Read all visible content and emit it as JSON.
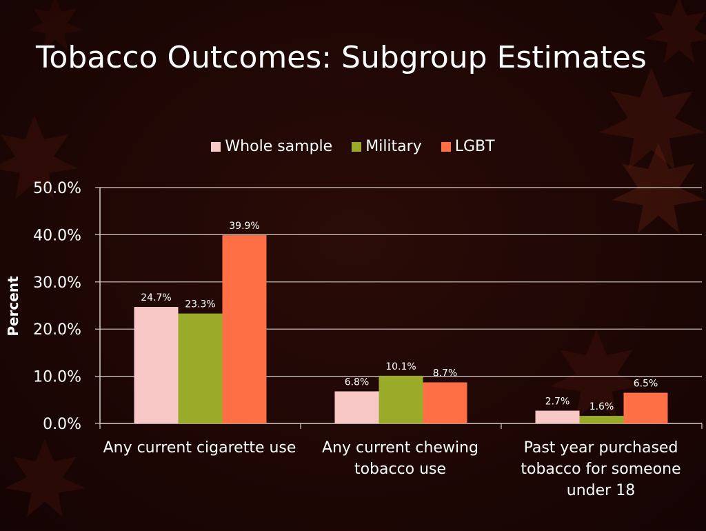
{
  "slide": {
    "title": "Tobacco Outcomes: Subgroup Estimates"
  },
  "chart_data": {
    "type": "bar",
    "ylabel": "Percent",
    "xlabel": "",
    "ylim": [
      0,
      50
    ],
    "yticks": [
      "0.0%",
      "10.0%",
      "20.0%",
      "30.0%",
      "40.0%",
      "50.0%"
    ],
    "grid": true,
    "legend_position": "top",
    "categories": [
      "Any current cigarette use",
      "Any current chewing tobacco use",
      "Past year purchased tobacco for someone under 18"
    ],
    "series": [
      {
        "name": "Whole sample",
        "color": "#f7c8c6",
        "values": [
          24.7,
          6.8,
          2.7
        ],
        "labels": [
          "24.7%",
          "6.8%",
          "2.7%"
        ]
      },
      {
        "name": "Military",
        "color": "#9aab2a",
        "values": [
          23.3,
          10.1,
          1.6
        ],
        "labels": [
          "23.3%",
          "10.1%",
          "1.6%"
        ]
      },
      {
        "name": "LGBT",
        "color": "#ff6f45",
        "values": [
          39.9,
          8.7,
          6.5
        ],
        "labels": [
          "39.9%",
          "8.7%",
          "6.5%"
        ]
      }
    ]
  }
}
